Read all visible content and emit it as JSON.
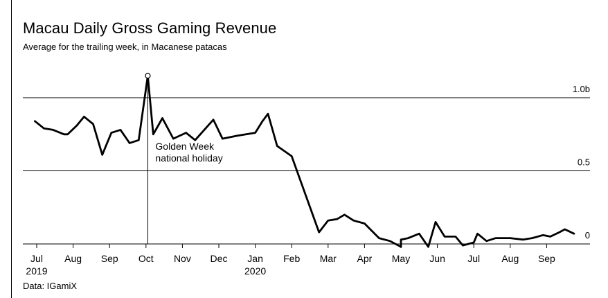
{
  "title": "Macau Daily Gross Gaming Revenue",
  "subtitle": "Average for the trailing week, in Macanese patacas",
  "source": "Data: IGamiX",
  "chart_data": {
    "type": "line",
    "title": "Macau Daily Gross Gaming Revenue",
    "subtitle": "Average for the trailing week, in Macanese patacas",
    "ylim": [
      0,
      1.1
    ],
    "grid": true,
    "y_ticks": [
      {
        "value": 1.0,
        "label": "1.0b"
      },
      {
        "value": 0.5,
        "label": "0.5"
      },
      {
        "value": 0,
        "label": "0"
      }
    ],
    "x_ticks": [
      {
        "pos": 0,
        "label": "Jul",
        "year": "2019"
      },
      {
        "pos": 1,
        "label": "Aug"
      },
      {
        "pos": 2,
        "label": "Sep"
      },
      {
        "pos": 3,
        "label": "Oct"
      },
      {
        "pos": 4,
        "label": "Nov"
      },
      {
        "pos": 5,
        "label": "Dec"
      },
      {
        "pos": 6,
        "label": "Jan",
        "year": "2020"
      },
      {
        "pos": 7,
        "label": "Feb"
      },
      {
        "pos": 8,
        "label": "Mar"
      },
      {
        "pos": 9,
        "label": "Apr"
      },
      {
        "pos": 10,
        "label": "May"
      },
      {
        "pos": 11,
        "label": "Jun"
      },
      {
        "pos": 12,
        "label": "Jul"
      },
      {
        "pos": 13,
        "label": "Aug"
      },
      {
        "pos": 14,
        "label": "Sep"
      }
    ],
    "series": [
      {
        "values": [
          {
            "x": -0.05,
            "y": 0.84
          },
          {
            "x": 0.2,
            "y": 0.79
          },
          {
            "x": 0.45,
            "y": 0.78
          },
          {
            "x": 0.75,
            "y": 0.75
          },
          {
            "x": 0.85,
            "y": 0.75
          },
          {
            "x": 1.1,
            "y": 0.81
          },
          {
            "x": 1.3,
            "y": 0.87
          },
          {
            "x": 1.55,
            "y": 0.82
          },
          {
            "x": 1.8,
            "y": 0.61
          },
          {
            "x": 2.05,
            "y": 0.76
          },
          {
            "x": 2.3,
            "y": 0.78
          },
          {
            "x": 2.55,
            "y": 0.69
          },
          {
            "x": 2.8,
            "y": 0.71
          },
          {
            "x": 3.05,
            "y": 1.15
          },
          {
            "x": 3.2,
            "y": 0.75
          },
          {
            "x": 3.45,
            "y": 0.86
          },
          {
            "x": 3.75,
            "y": 0.72
          },
          {
            "x": 4.1,
            "y": 0.76
          },
          {
            "x": 4.35,
            "y": 0.71
          },
          {
            "x": 4.85,
            "y": 0.85
          },
          {
            "x": 5.1,
            "y": 0.72
          },
          {
            "x": 5.5,
            "y": 0.74
          },
          {
            "x": 6.0,
            "y": 0.76
          },
          {
            "x": 6.2,
            "y": 0.84
          },
          {
            "x": 6.35,
            "y": 0.89
          },
          {
            "x": 6.6,
            "y": 0.67
          },
          {
            "x": 7.0,
            "y": 0.6
          },
          {
            "x": 7.75,
            "y": 0.08
          },
          {
            "x": 8.0,
            "y": 0.16
          },
          {
            "x": 8.25,
            "y": 0.17
          },
          {
            "x": 8.45,
            "y": 0.2
          },
          {
            "x": 8.7,
            "y": 0.16
          },
          {
            "x": 9.0,
            "y": 0.14
          },
          {
            "x": 9.4,
            "y": 0.04
          },
          {
            "x": 9.7,
            "y": 0.02
          },
          {
            "x": 10.0,
            "y": -0.02
          },
          {
            "x": 10.0,
            "y": 0.03
          },
          {
            "x": 10.2,
            "y": 0.04
          },
          {
            "x": 10.5,
            "y": 0.07
          },
          {
            "x": 10.75,
            "y": -0.02
          },
          {
            "x": 10.95,
            "y": 0.15
          },
          {
            "x": 11.2,
            "y": 0.05
          },
          {
            "x": 11.5,
            "y": 0.05
          },
          {
            "x": 11.7,
            "y": -0.01
          },
          {
            "x": 12.0,
            "y": 0.01
          },
          {
            "x": 12.1,
            "y": 0.07
          },
          {
            "x": 12.35,
            "y": 0.02
          },
          {
            "x": 12.6,
            "y": 0.04
          },
          {
            "x": 13.0,
            "y": 0.04
          },
          {
            "x": 13.35,
            "y": 0.03
          },
          {
            "x": 13.6,
            "y": 0.04
          },
          {
            "x": 13.9,
            "y": 0.06
          },
          {
            "x": 14.1,
            "y": 0.05
          },
          {
            "x": 14.35,
            "y": 0.08
          },
          {
            "x": 14.5,
            "y": 0.1
          },
          {
            "x": 14.75,
            "y": 0.07
          }
        ]
      }
    ],
    "annotation": {
      "text_line1": "Golden Week",
      "text_line2": "national holiday",
      "x": 3.05,
      "peak_y": 1.15
    }
  }
}
